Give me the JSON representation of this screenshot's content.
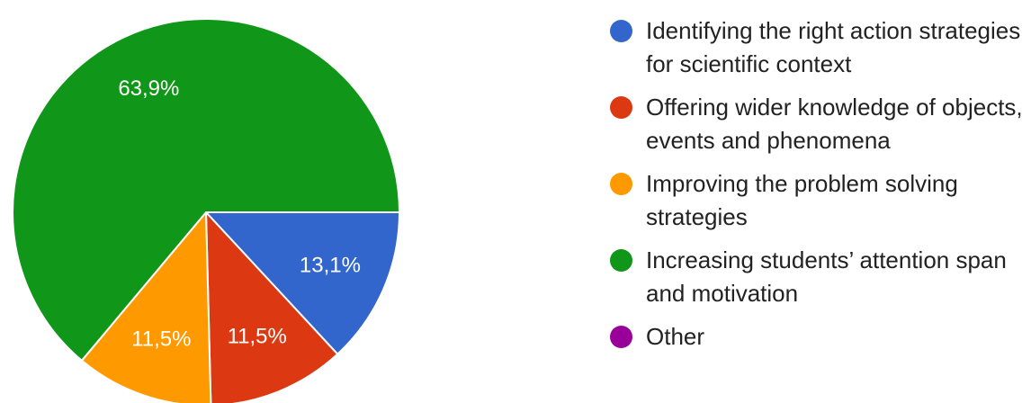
{
  "chart_data": {
    "type": "pie",
    "categories": [
      "Identifying the right action strategies for scientific context",
      "Offering wider knowledge of objects, events and phenomena",
      "Improving the problem solving strategies",
      "Increasing students’ attention span and motivation",
      "Other"
    ],
    "values": [
      13.1,
      11.5,
      11.5,
      63.9,
      0
    ],
    "value_labels": [
      "13,1%",
      "11,5%",
      "11,5%",
      "63,9%",
      null
    ],
    "colors": [
      "#3366cc",
      "#dc3912",
      "#ff9900",
      "#109618",
      "#990099"
    ],
    "legend": "right"
  }
}
